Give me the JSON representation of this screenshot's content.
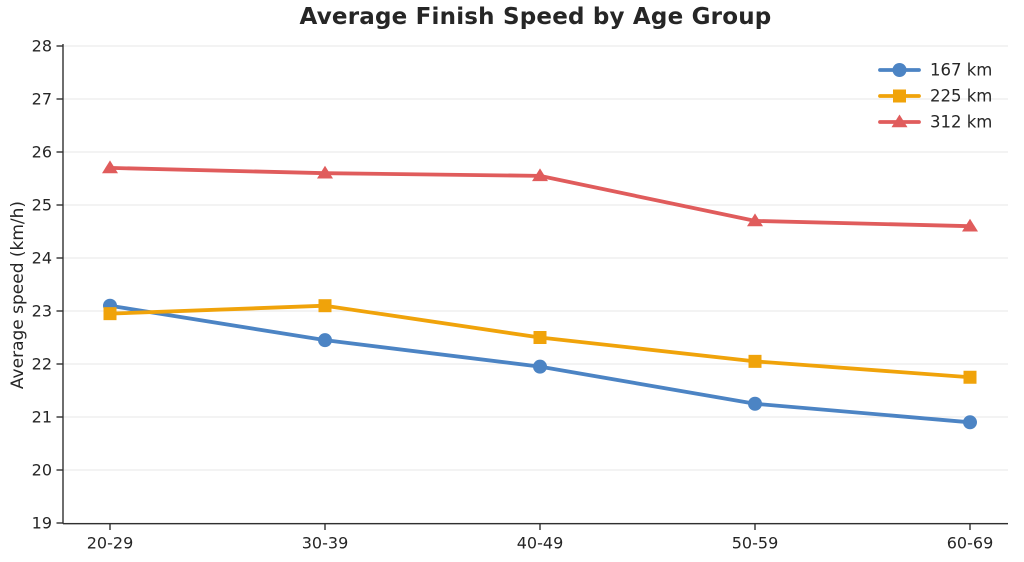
{
  "chart_data": {
    "type": "line",
    "title": "Average Finish Speed by Age Group",
    "xlabel": "",
    "ylabel": "Average speed (km/h)",
    "categories": [
      "20-29",
      "30-39",
      "40-49",
      "50-59",
      "60-69"
    ],
    "series": [
      {
        "name": "167 km",
        "color": "#4C84C4",
        "marker": "circle",
        "values": [
          23.1,
          22.45,
          21.95,
          21.25,
          20.9
        ]
      },
      {
        "name": "225 km",
        "color": "#F0A30A",
        "marker": "square",
        "values": [
          22.95,
          23.1,
          22.5,
          22.05,
          21.75
        ]
      },
      {
        "name": "312 km",
        "color": "#E05C5C",
        "marker": "triangle",
        "values": [
          25.7,
          25.6,
          25.55,
          24.7,
          24.6
        ]
      }
    ],
    "ylim": [
      19,
      28
    ],
    "yticks": [
      19,
      20,
      21,
      22,
      23,
      24,
      25,
      26,
      27,
      28
    ],
    "grid": true,
    "legend_position": "top-right",
    "colors": {
      "grid": "#e7e7e7",
      "axis": "#303030",
      "tick_text": "#262626",
      "background": "#ffffff"
    }
  }
}
